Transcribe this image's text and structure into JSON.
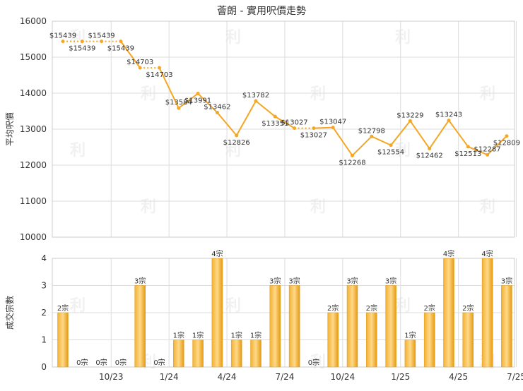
{
  "chart_data": [
    {
      "type": "line",
      "title": "薈朗 - 實用呎價走勢",
      "ylabel": "平均呎價",
      "ylim": [
        10000,
        16000
      ],
      "yticks": [
        10000,
        11000,
        12000,
        13000,
        14000,
        15000,
        16000
      ],
      "grid": true,
      "line_color": "#F5A623",
      "series": [
        {
          "values": [
            15439,
            15439,
            15439,
            15439,
            14703,
            14703,
            13584,
            13991,
            13462,
            12826,
            13782,
            13351,
            13027,
            13027,
            13047,
            12268,
            12798,
            12554,
            13229,
            12462,
            13243,
            12513,
            12287,
            12809
          ],
          "labels": [
            "$15439",
            "$15439",
            "$15439",
            "$15439",
            "$14703",
            "$14703",
            "$13584",
            "$13991",
            "$13462",
            "$12826",
            "$13782",
            "$13351",
            "$13027",
            "$13027",
            "$13047",
            "$12268",
            "$12798",
            "$12554",
            "$13229",
            "$12462",
            "$13243",
            "$12513",
            "$12287",
            "$12809"
          ]
        }
      ]
    },
    {
      "type": "bar",
      "ylabel": "成交宗數",
      "ylim": [
        0,
        4
      ],
      "yticks": [
        0,
        1,
        2,
        3,
        4
      ],
      "grid": true,
      "bar_color": "#F5A623",
      "xlabels": [
        "10/23",
        "1/24",
        "4/24",
        "7/24",
        "10/24",
        "1/25",
        "4/25",
        "7/25"
      ],
      "values": [
        2,
        0,
        0,
        0,
        3,
        0,
        1,
        1,
        4,
        1,
        1,
        3,
        3,
        0,
        2,
        3,
        2,
        3,
        1,
        2,
        4,
        2,
        4,
        3
      ],
      "labels": [
        "2宗",
        "0宗",
        "0宗",
        "0宗",
        "3宗",
        "0宗",
        "1宗",
        "1宗",
        "4宗",
        "1宗",
        "1宗",
        "3宗",
        "3宗",
        "0宗",
        "2宗",
        "3宗",
        "2宗",
        "3宗",
        "1宗",
        "2宗",
        "4宗",
        "2宗",
        "4宗",
        "3宗"
      ]
    }
  ]
}
